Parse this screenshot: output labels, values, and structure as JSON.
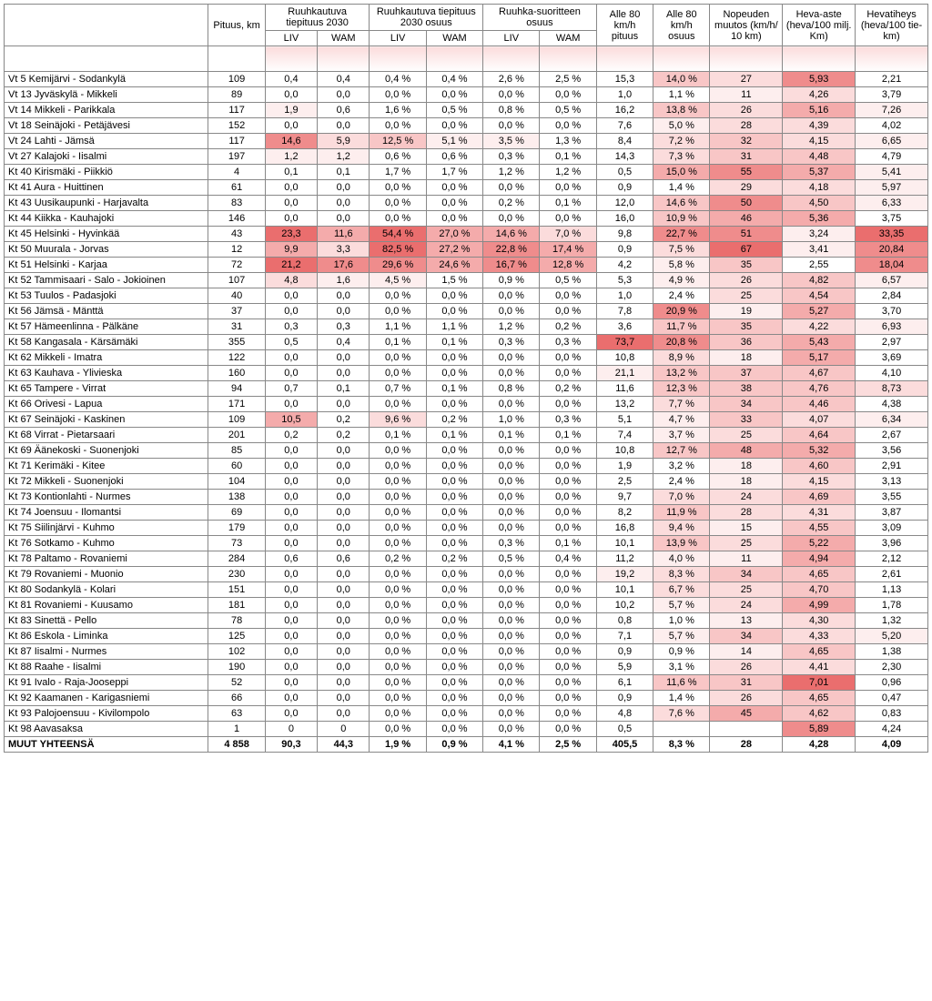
{
  "colors": {
    "white": "#ffffff",
    "p1": "#fdeeee",
    "p2": "#fbdcdc",
    "p3": "#f8c6c6",
    "p4": "#f4abab",
    "p5": "#ef8c8c",
    "p6": "#ea6e6e"
  },
  "widths": {
    "name": 180,
    "pituus": 50,
    "liv": 46,
    "wam": 46,
    "pct": 50,
    "alle_pit": 50,
    "alle_os": 50,
    "nop": 64,
    "heva": 64,
    "tih": 64
  },
  "headers": {
    "pituus": "Pituus, km",
    "ruuhka_tiep": "Ruuhkautuva tiepituus 2030",
    "ruuhka_tiep_os": "Ruuhkautuva tiepituus 2030 osuus",
    "ruuhka_suor": "Ruuhka-suoritteen osuus",
    "alle80_pit": "Alle 80 km/h pituus",
    "alle80_os": "Alle 80 km/h osuus",
    "nopeuden": "Nopeuden muutos (km/h/ 10 km)",
    "heva_aste": "Heva-aste (heva/100 milj. Km)",
    "heva_tih": "Hevatiheys (heva/100 tie-km)",
    "liv": "LIV",
    "wam": "WAM"
  },
  "rows": [
    {
      "n": "Vt 5 Kemijärvi - Sodankylä",
      "p": "109",
      "l1": "0,4",
      "w1": "0,4",
      "l2": "0,4 %",
      "w2": "0,4 %",
      "l3": "2,6 %",
      "w3": "2,5 %",
      "ap": "15,3",
      "ao": "14,0 %",
      "nm": "27",
      "ha": "5,93",
      "ht": "2,21",
      "c": {
        "ao": "p3",
        "nm": "p2",
        "ha": "p5"
      }
    },
    {
      "n": "Vt 13 Jyväskylä - Mikkeli",
      "p": "89",
      "l1": "0,0",
      "w1": "0,0",
      "l2": "0,0 %",
      "w2": "0,0 %",
      "l3": "0,0 %",
      "w3": "0,0 %",
      "ap": "1,0",
      "ao": "1,1 %",
      "nm": "11",
      "ha": "4,26",
      "ht": "3,79",
      "c": {
        "nm": "p1",
        "ha": "p2"
      }
    },
    {
      "n": "Vt 14 Mikkeli - Parikkala",
      "p": "117",
      "l1": "1,9",
      "w1": "0,6",
      "l2": "1,6 %",
      "w2": "0,5 %",
      "l3": "0,8 %",
      "w3": "0,5 %",
      "ap": "16,2",
      "ao": "13,8 %",
      "nm": "26",
      "ha": "5,16",
      "ht": "7,26",
      "c": {
        "l1": "p1",
        "ao": "p3",
        "nm": "p2",
        "ha": "p4",
        "ht": "p1"
      }
    },
    {
      "n": "Vt 18 Seinäjoki - Petäjävesi",
      "p": "152",
      "l1": "0,0",
      "w1": "0,0",
      "l2": "0,0 %",
      "w2": "0,0 %",
      "l3": "0,0 %",
      "w3": "0,0 %",
      "ap": "7,6",
      "ao": "5,0 %",
      "nm": "28",
      "ha": "4,39",
      "ht": "4,02",
      "c": {
        "ao": "p1",
        "nm": "p2",
        "ha": "p2"
      }
    },
    {
      "n": "Vt 24 Lahti - Jämsä",
      "p": "117",
      "l1": "14,6",
      "w1": "5,9",
      "l2": "12,5 %",
      "w2": "5,1 %",
      "l3": "3,5 %",
      "w3": "1,3 %",
      "ap": "8,4",
      "ao": "7,2 %",
      "nm": "32",
      "ha": "4,15",
      "ht": "6,65",
      "c": {
        "l1": "p5",
        "w1": "p2",
        "l2": "p3",
        "w2": "p1",
        "l3": "p1",
        "ao": "p2",
        "nm": "p3",
        "ha": "p2",
        "ht": "p1"
      }
    },
    {
      "n": "Vt 27 Kalajoki - Iisalmi",
      "p": "197",
      "l1": "1,2",
      "w1": "1,2",
      "l2": "0,6 %",
      "w2": "0,6 %",
      "l3": "0,3 %",
      "w3": "0,1 %",
      "ap": "14,3",
      "ao": "7,3 %",
      "nm": "31",
      "ha": "4,48",
      "ht": "4,79",
      "c": {
        "l1": "p1",
        "w1": "p1",
        "ao": "p2",
        "nm": "p3",
        "ha": "p3"
      }
    },
    {
      "n": "Kt 40 Kirismäki - Piikkiö",
      "p": "4",
      "l1": "0,1",
      "w1": "0,1",
      "l2": "1,7 %",
      "w2": "1,7 %",
      "l3": "1,2 %",
      "w3": "1,2 %",
      "ap": "0,5",
      "ao": "15,0 %",
      "nm": "55",
      "ha": "5,37",
      "ht": "5,41",
      "c": {
        "ao": "p4",
        "nm": "p5",
        "ha": "p4",
        "ht": "p1"
      }
    },
    {
      "n": "Kt 41 Aura - Huittinen",
      "p": "61",
      "l1": "0,0",
      "w1": "0,0",
      "l2": "0,0 %",
      "w2": "0,0 %",
      "l3": "0,0 %",
      "w3": "0,0 %",
      "ap": "0,9",
      "ao": "1,4 %",
      "nm": "29",
      "ha": "4,18",
      "ht": "5,97",
      "c": {
        "nm": "p2",
        "ha": "p2",
        "ht": "p1"
      }
    },
    {
      "n": "Kt 43 Uusikaupunki - Harjavalta",
      "p": "83",
      "l1": "0,0",
      "w1": "0,0",
      "l2": "0,0 %",
      "w2": "0,0 %",
      "l3": "0,2 %",
      "w3": "0,1 %",
      "ap": "12,0",
      "ao": "14,6 %",
      "nm": "50",
      "ha": "4,50",
      "ht": "6,33",
      "c": {
        "ao": "p3",
        "nm": "p5",
        "ha": "p3",
        "ht": "p1"
      }
    },
    {
      "n": "Kt 44 Kiikka - Kauhajoki",
      "p": "146",
      "l1": "0,0",
      "w1": "0,0",
      "l2": "0,0 %",
      "w2": "0,0 %",
      "l3": "0,0 %",
      "w3": "0,0 %",
      "ap": "16,0",
      "ao": "10,9 %",
      "nm": "46",
      "ha": "5,36",
      "ht": "3,75",
      "c": {
        "ao": "p3",
        "nm": "p4",
        "ha": "p4"
      }
    },
    {
      "n": "Kt 45 Helsinki - Hyvinkää",
      "p": "43",
      "l1": "23,3",
      "w1": "11,6",
      "l2": "54,4 %",
      "w2": "27,0 %",
      "l3": "14,6 %",
      "w3": "7,0 %",
      "ap": "9,8",
      "ao": "22,7 %",
      "nm": "51",
      "ha": "3,24",
      "ht": "33,35",
      "c": {
        "l1": "p6",
        "w1": "p4",
        "l2": "p6",
        "w2": "p4",
        "l3": "p4",
        "w3": "p2",
        "ao": "p5",
        "nm": "p5",
        "ha": "p1",
        "ht": "p6"
      }
    },
    {
      "n": "Kt 50 Muurala - Jorvas",
      "p": "12",
      "l1": "9,9",
      "w1": "3,3",
      "l2": "82,5 %",
      "w2": "27,2 %",
      "l3": "22,8 %",
      "w3": "17,4 %",
      "ap": "0,9",
      "ao": "7,5 %",
      "nm": "67",
      "ha": "3,41",
      "ht": "20,84",
      "c": {
        "l1": "p4",
        "w1": "p2",
        "l2": "p6",
        "w2": "p4",
        "l3": "p5",
        "w3": "p4",
        "ao": "p2",
        "nm": "p6",
        "ha": "p1",
        "ht": "p5"
      }
    },
    {
      "n": "Kt 51 Helsinki - Karjaa",
      "p": "72",
      "l1": "21,2",
      "w1": "17,6",
      "l2": "29,6 %",
      "w2": "24,6 %",
      "l3": "16,7 %",
      "w3": "12,8 %",
      "ap": "4,2",
      "ao": "5,8 %",
      "nm": "35",
      "ha": "2,55",
      "ht": "18,04",
      "c": {
        "l1": "p6",
        "w1": "p5",
        "l2": "p5",
        "w2": "p4",
        "l3": "p5",
        "w3": "p4",
        "ao": "p1",
        "nm": "p3",
        "ht": "p5"
      }
    },
    {
      "n": "Kt 52 Tammisaari - Salo - Jokioinen",
      "p": "107",
      "l1": "4,8",
      "w1": "1,6",
      "l2": "4,5 %",
      "w2": "1,5 %",
      "l3": "0,9 %",
      "w3": "0,5 %",
      "ap": "5,3",
      "ao": "4,9 %",
      "nm": "26",
      "ha": "4,82",
      "ht": "6,57",
      "c": {
        "l1": "p2",
        "w1": "p1",
        "l2": "p1",
        "ao": "p1",
        "nm": "p2",
        "ha": "p3",
        "ht": "p1"
      }
    },
    {
      "n": "Kt 53 Tuulos - Padasjoki",
      "p": "40",
      "l1": "0,0",
      "w1": "0,0",
      "l2": "0,0 %",
      "w2": "0,0 %",
      "l3": "0,0 %",
      "w3": "0,0 %",
      "ap": "1,0",
      "ao": "2,4 %",
      "nm": "25",
      "ha": "4,54",
      "ht": "2,84",
      "c": {
        "nm": "p2",
        "ha": "p3"
      }
    },
    {
      "n": "Kt 56 Jämsä - Mänttä",
      "p": "37",
      "l1": "0,0",
      "w1": "0,0",
      "l2": "0,0 %",
      "w2": "0,0 %",
      "l3": "0,0 %",
      "w3": "0,0 %",
      "ap": "7,8",
      "ao": "20,9 %",
      "nm": "19",
      "ha": "5,27",
      "ht": "3,70",
      "c": {
        "ao": "p5",
        "nm": "p1",
        "ha": "p4"
      }
    },
    {
      "n": "Kt 57 Hämeenlinna - Pälkäne",
      "p": "31",
      "l1": "0,3",
      "w1": "0,3",
      "l2": "1,1 %",
      "w2": "1,1 %",
      "l3": "1,2 %",
      "w3": "0,2 %",
      "ap": "3,6",
      "ao": "11,7 %",
      "nm": "35",
      "ha": "4,22",
      "ht": "6,93",
      "c": {
        "ao": "p3",
        "nm": "p3",
        "ha": "p2",
        "ht": "p1"
      }
    },
    {
      "n": "Kt 58 Kangasala - Kärsämäki",
      "p": "355",
      "l1": "0,5",
      "w1": "0,4",
      "l2": "0,1 %",
      "w2": "0,1 %",
      "l3": "0,3 %",
      "w3": "0,3 %",
      "ap": "73,7",
      "ao": "20,8 %",
      "nm": "36",
      "ha": "5,43",
      "ht": "2,97",
      "c": {
        "ap": "p6",
        "ao": "p5",
        "nm": "p3",
        "ha": "p4"
      }
    },
    {
      "n": "Kt 62 Mikkeli - Imatra",
      "p": "122",
      "l1": "0,0",
      "w1": "0,0",
      "l2": "0,0 %",
      "w2": "0,0 %",
      "l3": "0,0 %",
      "w3": "0,0 %",
      "ap": "10,8",
      "ao": "8,9 %",
      "nm": "18",
      "ha": "5,17",
      "ht": "3,69",
      "c": {
        "ao": "p2",
        "nm": "p1",
        "ha": "p4"
      }
    },
    {
      "n": "Kt 63 Kauhava - Ylivieska",
      "p": "160",
      "l1": "0,0",
      "w1": "0,0",
      "l2": "0,0 %",
      "w2": "0,0 %",
      "l3": "0,0 %",
      "w3": "0,0 %",
      "ap": "21,1",
      "ao": "13,2 %",
      "nm": "37",
      "ha": "4,67",
      "ht": "4,10",
      "c": {
        "ap": "p1",
        "ao": "p3",
        "nm": "p3",
        "ha": "p3"
      }
    },
    {
      "n": "Kt 65 Tampere - Virrat",
      "p": "94",
      "l1": "0,7",
      "w1": "0,1",
      "l2": "0,7 %",
      "w2": "0,1 %",
      "l3": "0,8 %",
      "w3": "0,2 %",
      "ap": "11,6",
      "ao": "12,3 %",
      "nm": "38",
      "ha": "4,76",
      "ht": "8,73",
      "c": {
        "ao": "p3",
        "nm": "p3",
        "ha": "p3",
        "ht": "p2"
      }
    },
    {
      "n": "Kt 66 Orivesi - Lapua",
      "p": "171",
      "l1": "0,0",
      "w1": "0,0",
      "l2": "0,0 %",
      "w2": "0,0 %",
      "l3": "0,0 %",
      "w3": "0,0 %",
      "ap": "13,2",
      "ao": "7,7 %",
      "nm": "34",
      "ha": "4,46",
      "ht": "4,38",
      "c": {
        "ao": "p2",
        "nm": "p3",
        "ha": "p3"
      }
    },
    {
      "n": "Kt 67 Seinäjoki - Kaskinen",
      "p": "109",
      "l1": "10,5",
      "w1": "0,2",
      "l2": "9,6 %",
      "w2": "0,2 %",
      "l3": "1,0 %",
      "w3": "0,3 %",
      "ap": "5,1",
      "ao": "4,7 %",
      "nm": "33",
      "ha": "4,07",
      "ht": "6,34",
      "c": {
        "l1": "p4",
        "l2": "p2",
        "ao": "p1",
        "nm": "p3",
        "ha": "p2",
        "ht": "p1"
      }
    },
    {
      "n": "Kt 68 Virrat - Pietarsaari",
      "p": "201",
      "l1": "0,2",
      "w1": "0,2",
      "l2": "0,1 %",
      "w2": "0,1 %",
      "l3": "0,1 %",
      "w3": "0,1 %",
      "ap": "7,4",
      "ao": "3,7 %",
      "nm": "25",
      "ha": "4,64",
      "ht": "2,67",
      "c": {
        "ao": "p1",
        "nm": "p2",
        "ha": "p3"
      }
    },
    {
      "n": "Kt 69 Äänekoski - Suonenjoki",
      "p": "85",
      "l1": "0,0",
      "w1": "0,0",
      "l2": "0,0 %",
      "w2": "0,0 %",
      "l3": "0,0 %",
      "w3": "0,0 %",
      "ap": "10,8",
      "ao": "12,7 %",
      "nm": "48",
      "ha": "5,32",
      "ht": "3,56",
      "c": {
        "ao": "p3",
        "nm": "p4",
        "ha": "p4"
      }
    },
    {
      "n": "Kt 71 Kerimäki - Kitee",
      "p": "60",
      "l1": "0,0",
      "w1": "0,0",
      "l2": "0,0 %",
      "w2": "0,0 %",
      "l3": "0,0 %",
      "w3": "0,0 %",
      "ap": "1,9",
      "ao": "3,2 %",
      "nm": "18",
      "ha": "4,60",
      "ht": "2,91",
      "c": {
        "nm": "p1",
        "ha": "p3"
      }
    },
    {
      "n": "Kt 72 Mikkeli - Suonenjoki",
      "p": "104",
      "l1": "0,0",
      "w1": "0,0",
      "l2": "0,0 %",
      "w2": "0,0 %",
      "l3": "0,0 %",
      "w3": "0,0 %",
      "ap": "2,5",
      "ao": "2,4 %",
      "nm": "18",
      "ha": "4,15",
      "ht": "3,13",
      "c": {
        "nm": "p1",
        "ha": "p2"
      }
    },
    {
      "n": "Kt 73 Kontionlahti - Nurmes",
      "p": "138",
      "l1": "0,0",
      "w1": "0,0",
      "l2": "0,0 %",
      "w2": "0,0 %",
      "l3": "0,0 %",
      "w3": "0,0 %",
      "ap": "9,7",
      "ao": "7,0 %",
      "nm": "24",
      "ha": "4,69",
      "ht": "3,55",
      "c": {
        "ao": "p2",
        "nm": "p2",
        "ha": "p3"
      }
    },
    {
      "n": "Kt 74 Joensuu - Ilomantsi",
      "p": "69",
      "l1": "0,0",
      "w1": "0,0",
      "l2": "0,0 %",
      "w2": "0,0 %",
      "l3": "0,0 %",
      "w3": "0,0 %",
      "ap": "8,2",
      "ao": "11,9 %",
      "nm": "28",
      "ha": "4,31",
      "ht": "3,87",
      "c": {
        "ao": "p3",
        "nm": "p2",
        "ha": "p2"
      }
    },
    {
      "n": "Kt 75 Siilinjärvi - Kuhmo",
      "p": "179",
      "l1": "0,0",
      "w1": "0,0",
      "l2": "0,0 %",
      "w2": "0,0 %",
      "l3": "0,0 %",
      "w3": "0,0 %",
      "ap": "16,8",
      "ao": "9,4 %",
      "nm": "15",
      "ha": "4,55",
      "ht": "3,09",
      "c": {
        "ao": "p2",
        "nm": "p1",
        "ha": "p3"
      }
    },
    {
      "n": "Kt 76 Sotkamo - Kuhmo",
      "p": "73",
      "l1": "0,0",
      "w1": "0,0",
      "l2": "0,0 %",
      "w2": "0,0 %",
      "l3": "0,3 %",
      "w3": "0,1 %",
      "ap": "10,1",
      "ao": "13,9 %",
      "nm": "25",
      "ha": "5,22",
      "ht": "3,96",
      "c": {
        "ao": "p3",
        "nm": "p2",
        "ha": "p4"
      }
    },
    {
      "n": "Kt 78 Paltamo - Rovaniemi",
      "p": "284",
      "l1": "0,6",
      "w1": "0,6",
      "l2": "0,2 %",
      "w2": "0,2 %",
      "l3": "0,5 %",
      "w3": "0,4 %",
      "ap": "11,2",
      "ao": "4,0 %",
      "nm": "11",
      "ha": "4,94",
      "ht": "2,12",
      "c": {
        "ao": "p1",
        "nm": "p1",
        "ha": "p4"
      }
    },
    {
      "n": "Kt 79 Rovaniemi - Muonio",
      "p": "230",
      "l1": "0,0",
      "w1": "0,0",
      "l2": "0,0 %",
      "w2": "0,0 %",
      "l3": "0,0 %",
      "w3": "0,0 %",
      "ap": "19,2",
      "ao": "8,3 %",
      "nm": "34",
      "ha": "4,65",
      "ht": "2,61",
      "c": {
        "ap": "p1",
        "ao": "p2",
        "nm": "p3",
        "ha": "p3"
      }
    },
    {
      "n": "Kt 80 Sodankylä - Kolari",
      "p": "151",
      "l1": "0,0",
      "w1": "0,0",
      "l2": "0,0 %",
      "w2": "0,0 %",
      "l3": "0,0 %",
      "w3": "0,0 %",
      "ap": "10,1",
      "ao": "6,7 %",
      "nm": "25",
      "ha": "4,70",
      "ht": "1,13",
      "c": {
        "ao": "p2",
        "nm": "p2",
        "ha": "p3"
      }
    },
    {
      "n": "Kt 81 Rovaniemi - Kuusamo",
      "p": "181",
      "l1": "0,0",
      "w1": "0,0",
      "l2": "0,0 %",
      "w2": "0,0 %",
      "l3": "0,0 %",
      "w3": "0,0 %",
      "ap": "10,2",
      "ao": "5,7 %",
      "nm": "24",
      "ha": "4,99",
      "ht": "1,78",
      "c": {
        "ao": "p1",
        "nm": "p2",
        "ha": "p4"
      }
    },
    {
      "n": "Kt 83 Sinettä - Pello",
      "p": "78",
      "l1": "0,0",
      "w1": "0,0",
      "l2": "0,0 %",
      "w2": "0,0 %",
      "l3": "0,0 %",
      "w3": "0,0 %",
      "ap": "0,8",
      "ao": "1,0 %",
      "nm": "13",
      "ha": "4,30",
      "ht": "1,32",
      "c": {
        "nm": "p1",
        "ha": "p2"
      }
    },
    {
      "n": "Kt 86 Eskola - Liminka",
      "p": "125",
      "l1": "0,0",
      "w1": "0,0",
      "l2": "0,0 %",
      "w2": "0,0 %",
      "l3": "0,0 %",
      "w3": "0,0 %",
      "ap": "7,1",
      "ao": "5,7 %",
      "nm": "34",
      "ha": "4,33",
      "ht": "5,20",
      "c": {
        "ao": "p1",
        "nm": "p3",
        "ha": "p2",
        "ht": "p1"
      }
    },
    {
      "n": "Kt 87 Iisalmi - Nurmes",
      "p": "102",
      "l1": "0,0",
      "w1": "0,0",
      "l2": "0,0 %",
      "w2": "0,0 %",
      "l3": "0,0 %",
      "w3": "0,0 %",
      "ap": "0,9",
      "ao": "0,9 %",
      "nm": "14",
      "ha": "4,65",
      "ht": "1,38",
      "c": {
        "nm": "p1",
        "ha": "p3"
      }
    },
    {
      "n": "Kt 88 Raahe - Iisalmi",
      "p": "190",
      "l1": "0,0",
      "w1": "0,0",
      "l2": "0,0 %",
      "w2": "0,0 %",
      "l3": "0,0 %",
      "w3": "0,0 %",
      "ap": "5,9",
      "ao": "3,1 %",
      "nm": "26",
      "ha": "4,41",
      "ht": "2,30",
      "c": {
        "nm": "p2",
        "ha": "p2"
      }
    },
    {
      "n": "Kt 91 Ivalo - Raja-Jooseppi",
      "p": "52",
      "l1": "0,0",
      "w1": "0,0",
      "l2": "0,0 %",
      "w2": "0,0 %",
      "l3": "0,0 %",
      "w3": "0,0 %",
      "ap": "6,1",
      "ao": "11,6 %",
      "nm": "31",
      "ha": "7,01",
      "ht": "0,96",
      "c": {
        "ao": "p3",
        "nm": "p3",
        "ha": "p6"
      }
    },
    {
      "n": "Kt 92 Kaamanen - Karigasniemi",
      "p": "66",
      "l1": "0,0",
      "w1": "0,0",
      "l2": "0,0 %",
      "w2": "0,0 %",
      "l3": "0,0 %",
      "w3": "0,0 %",
      "ap": "0,9",
      "ao": "1,4 %",
      "nm": "26",
      "ha": "4,65",
      "ht": "0,47",
      "c": {
        "nm": "p2",
        "ha": "p3"
      }
    },
    {
      "n": "Kt 93 Palojoensuu - Kivilompolo",
      "p": "63",
      "l1": "0,0",
      "w1": "0,0",
      "l2": "0,0 %",
      "w2": "0,0 %",
      "l3": "0,0 %",
      "w3": "0,0 %",
      "ap": "4,8",
      "ao": "7,6 %",
      "nm": "45",
      "ha": "4,62",
      "ht": "0,83",
      "c": {
        "ao": "p2",
        "nm": "p4",
        "ha": "p3"
      }
    },
    {
      "n": "Kt 98 Aavasaksa",
      "p": "1",
      "l1": "0",
      "w1": "0",
      "l2": "0,0 %",
      "w2": "0,0 %",
      "l3": "0,0 %",
      "w3": "0,0 %",
      "ap": "0,5",
      "ao": "",
      "nm": "",
      "ha": "5,89",
      "ht": "4,24",
      "c": {
        "ha": "p5"
      }
    }
  ],
  "total": {
    "n": "MUUT YHTEENSÄ",
    "p": "4 858",
    "l1": "90,3",
    "w1": "44,3",
    "l2": "1,9 %",
    "w2": "0,9 %",
    "l3": "4,1 %",
    "w3": "2,5 %",
    "ap": "405,5",
    "ao": "8,3 %",
    "nm": "28",
    "ha": "4,28",
    "ht": "4,09"
  }
}
